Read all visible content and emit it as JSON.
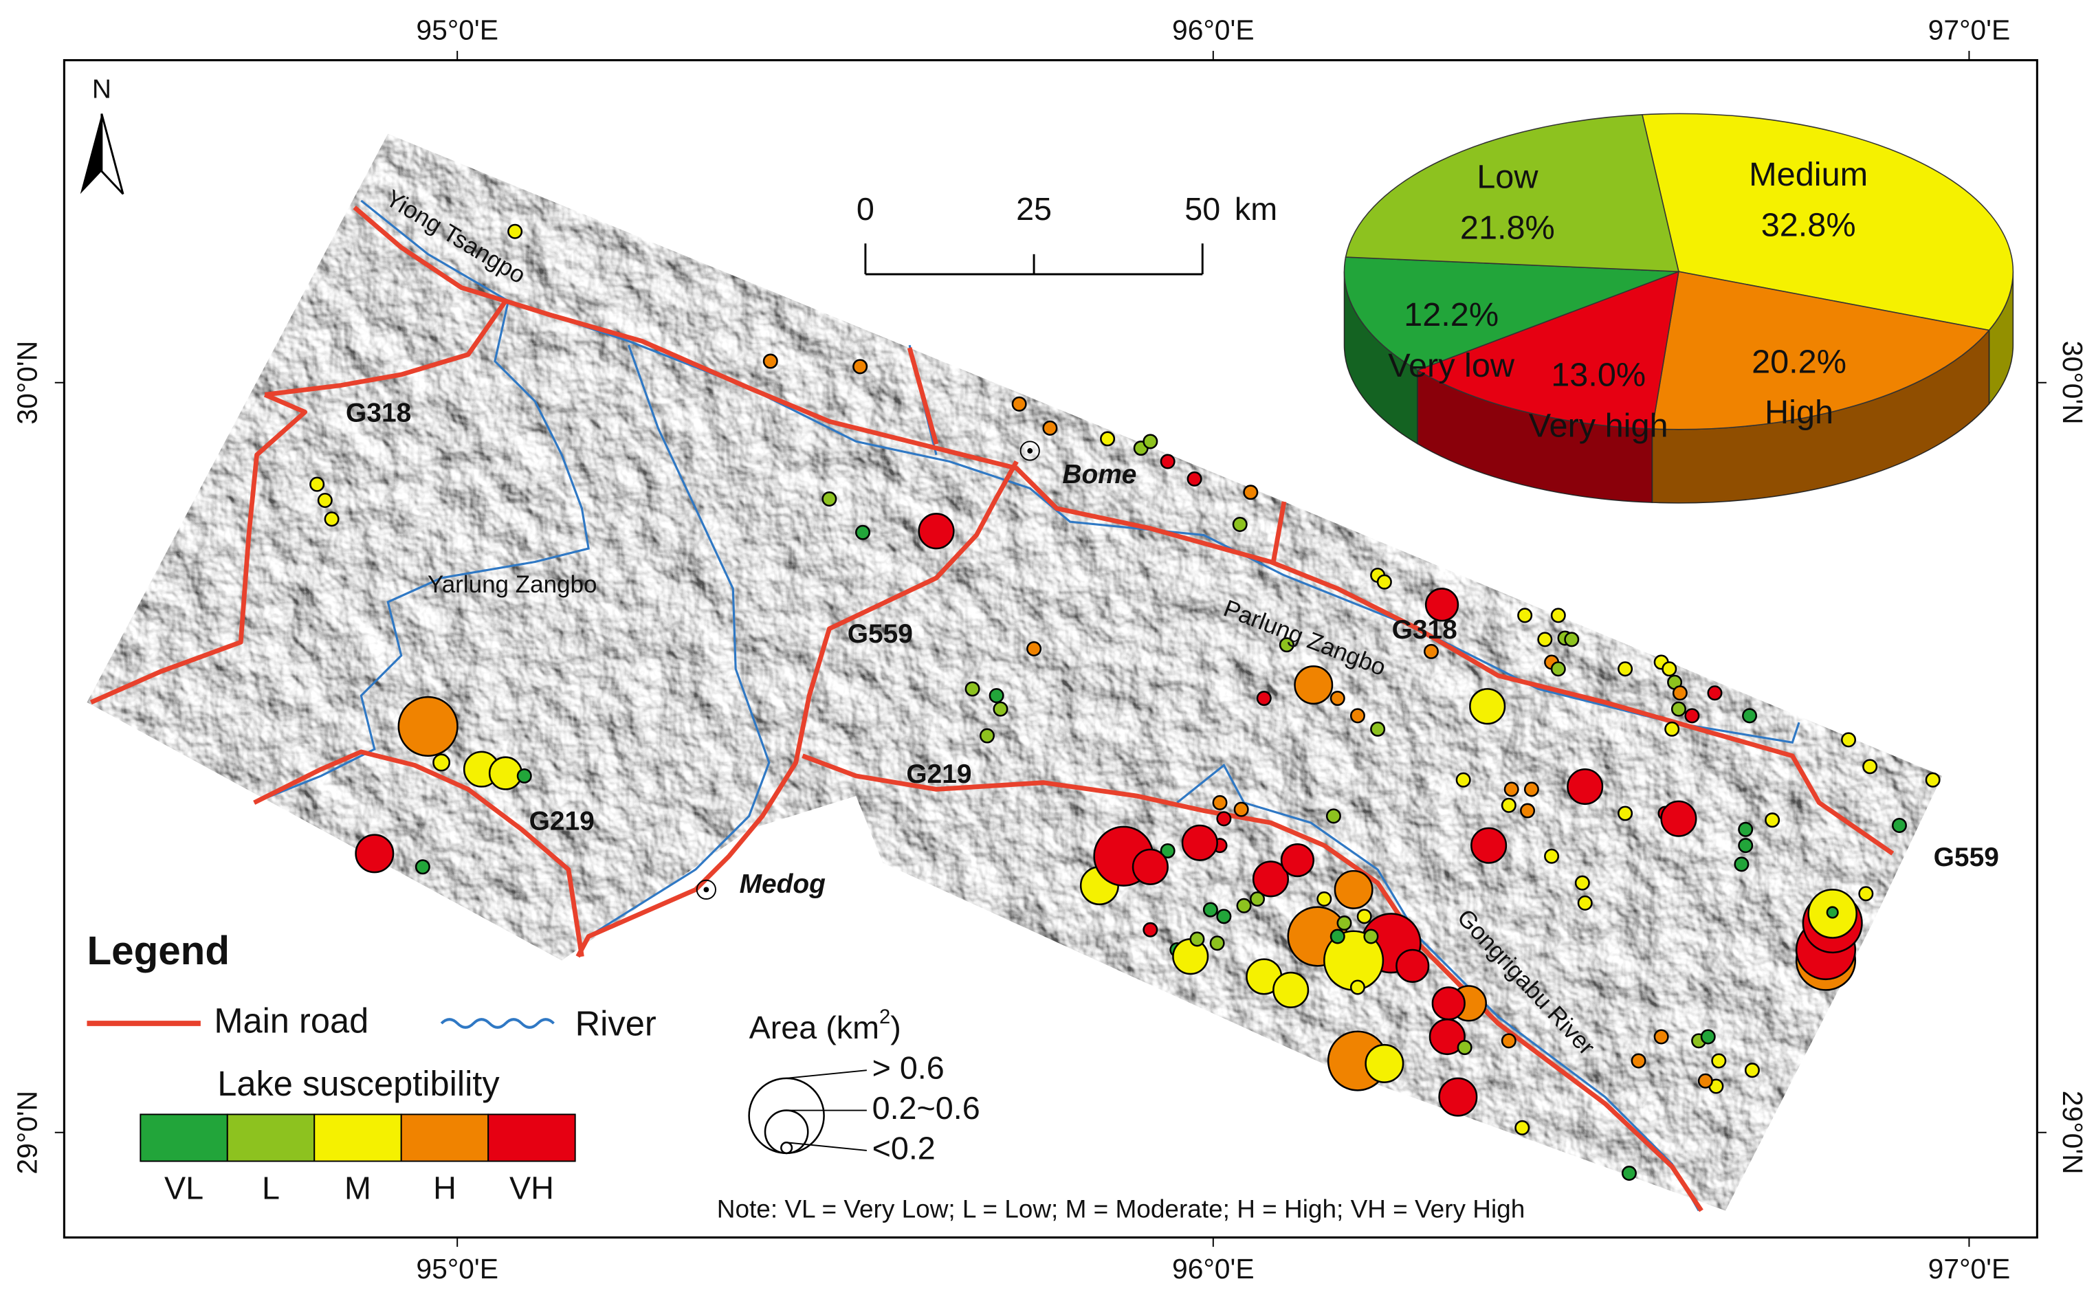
{
  "map": {
    "lon_range": [
      94.48,
      97.09
    ],
    "lat_range": [
      28.86,
      30.43
    ],
    "lon_ticks": [
      {
        "value": 95,
        "label": "95°0'E"
      },
      {
        "value": 96,
        "label": "96°0'E"
      },
      {
        "value": 97,
        "label": "97°0'E"
      }
    ],
    "lat_ticks": [
      {
        "value": 30,
        "label": "30°0'N"
      },
      {
        "value": 29,
        "label": "29°0'N"
      }
    ],
    "north": "N",
    "scale_bar": {
      "ticks": [
        0,
        25,
        50
      ],
      "unit": "km"
    },
    "rivers": [
      "Yiong Tsangpo",
      "Yarlung Zangbo",
      "Parlung Zangbo",
      "Gongrigabu River"
    ],
    "roads": [
      "G318",
      "G318",
      "G559",
      "G219",
      "G219",
      "G559"
    ],
    "towns": [
      "Bome",
      "Medog"
    ]
  },
  "legend": {
    "title": "Legend",
    "main_road": "Main road",
    "river": "River",
    "susceptibility_title": "Lake susceptibility",
    "classes": [
      {
        "label": "VL",
        "color": "#22a53a"
      },
      {
        "label": "L",
        "color": "#8dc21f"
      },
      {
        "label": "M",
        "color": "#f5f100"
      },
      {
        "label": "H",
        "color": "#f08300"
      },
      {
        "label": "VH",
        "color": "#e60012"
      }
    ],
    "area": {
      "title_prefix": "Area (km",
      "title_sup": "2",
      "title_suffix": ")",
      "sizes": [
        "> 0.6",
        "0.2~0.6",
        "<0.2"
      ]
    },
    "note": "Note: VL = Very Low; L = Low; M = Moderate; H = High; VH = Very High"
  },
  "pie": {
    "slices": [
      {
        "name": "Medium",
        "value": 32.8,
        "value_label": "32.8%",
        "color": "#f5f100"
      },
      {
        "name": "High",
        "value": 20.2,
        "value_label": "20.2%",
        "color": "#f08300"
      },
      {
        "name": "Very high",
        "value": 13.0,
        "value_label": "13.0%",
        "color": "#e60012"
      },
      {
        "name": "Very low",
        "value": 12.2,
        "value_label": "12.2%",
        "color": "#22a53a"
      },
      {
        "name": "Low",
        "value": 21.8,
        "value_label": "21.8%",
        "color": "#8dc21f"
      }
    ]
  }
}
